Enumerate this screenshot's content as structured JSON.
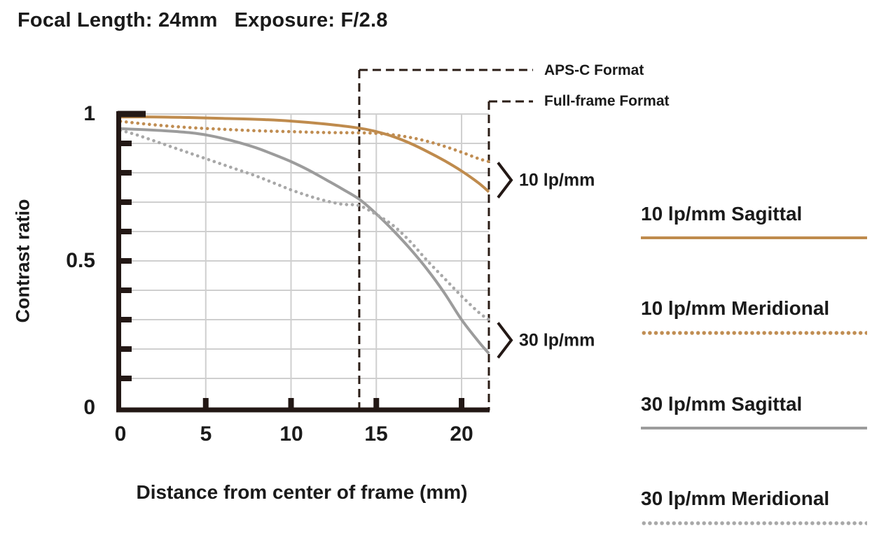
{
  "header": {
    "focal_length": "Focal Length: 24mm",
    "exposure": "Exposure: F/2.8"
  },
  "chart_data": {
    "type": "line",
    "xlabel": "Distance from center of frame (mm)",
    "ylabel": "Contrast ratio",
    "xlim": [
      0,
      21.6
    ],
    "ylim": [
      0,
      1
    ],
    "x_ticks": [
      0,
      5,
      10,
      15,
      20
    ],
    "x_tick_labels": [
      "0",
      "5",
      "10",
      "15",
      "20"
    ],
    "y_major_ticks": [
      1,
      0.5,
      0
    ],
    "y_tick_labels": [
      "1",
      "0.5",
      "0"
    ],
    "y_minor_step": 0.1,
    "grid": true,
    "boundaries": [
      {
        "label": "APS-C Format",
        "x": 14
      },
      {
        "label": "Full-frame Format",
        "x": 21.6
      }
    ],
    "group_markers": [
      {
        "label": "10 lp/mm",
        "y": 0.775
      },
      {
        "label": "30 lp/mm",
        "y": 0.23
      }
    ],
    "series": [
      {
        "name": "10 lp/mm Sagittal",
        "style": "solid",
        "color": "#bf8b4d",
        "points": [
          [
            0,
            0.99
          ],
          [
            2,
            0.99
          ],
          [
            4,
            0.988
          ],
          [
            6,
            0.985
          ],
          [
            8,
            0.982
          ],
          [
            10,
            0.976
          ],
          [
            12,
            0.966
          ],
          [
            14,
            0.952
          ],
          [
            15,
            0.94
          ],
          [
            16,
            0.923
          ],
          [
            17,
            0.9
          ],
          [
            18,
            0.872
          ],
          [
            19,
            0.841
          ],
          [
            20,
            0.806
          ],
          [
            21,
            0.765
          ],
          [
            21.6,
            0.735
          ]
        ]
      },
      {
        "name": "10 lp/mm Meridional",
        "style": "dotted",
        "color": "#c08d52",
        "points": [
          [
            0,
            0.975
          ],
          [
            2,
            0.963
          ],
          [
            4,
            0.954
          ],
          [
            6,
            0.948
          ],
          [
            8,
            0.943
          ],
          [
            10,
            0.94
          ],
          [
            12,
            0.937
          ],
          [
            14,
            0.936
          ],
          [
            15,
            0.934
          ],
          [
            16,
            0.929
          ],
          [
            17,
            0.92
          ],
          [
            18,
            0.907
          ],
          [
            19,
            0.89
          ],
          [
            20,
            0.87
          ],
          [
            21,
            0.848
          ],
          [
            21.6,
            0.838
          ]
        ]
      },
      {
        "name": "30 lp/mm Sagittal",
        "style": "solid",
        "color": "#9c9c9c",
        "points": [
          [
            0,
            0.95
          ],
          [
            2,
            0.945
          ],
          [
            4,
            0.937
          ],
          [
            5,
            0.929
          ],
          [
            6,
            0.917
          ],
          [
            7,
            0.902
          ],
          [
            8,
            0.884
          ],
          [
            9,
            0.862
          ],
          [
            10,
            0.838
          ],
          [
            11,
            0.81
          ],
          [
            12,
            0.778
          ],
          [
            13,
            0.745
          ],
          [
            14,
            0.71
          ],
          [
            15,
            0.66
          ],
          [
            16,
            0.603
          ],
          [
            17,
            0.54
          ],
          [
            18,
            0.47
          ],
          [
            19,
            0.39
          ],
          [
            20,
            0.3
          ],
          [
            21,
            0.225
          ],
          [
            21.6,
            0.185
          ]
        ]
      },
      {
        "name": "30 lp/mm Meridional",
        "style": "dotted",
        "color": "#a8a8a8",
        "points": [
          [
            0,
            0.945
          ],
          [
            1,
            0.928
          ],
          [
            2,
            0.908
          ],
          [
            3,
            0.888
          ],
          [
            4,
            0.868
          ],
          [
            5,
            0.848
          ],
          [
            6,
            0.828
          ],
          [
            7,
            0.808
          ],
          [
            8,
            0.788
          ],
          [
            9,
            0.765
          ],
          [
            10,
            0.742
          ],
          [
            11,
            0.722
          ],
          [
            12,
            0.705
          ],
          [
            13,
            0.693
          ],
          [
            14,
            0.688
          ],
          [
            15,
            0.658
          ],
          [
            16,
            0.62
          ],
          [
            17,
            0.565
          ],
          [
            18,
            0.5
          ],
          [
            19,
            0.44
          ],
          [
            20,
            0.38
          ],
          [
            21,
            0.325
          ],
          [
            21.6,
            0.3
          ]
        ]
      }
    ]
  },
  "legend": {
    "items": [
      {
        "label": "10 lp/mm Sagittal",
        "style": "solid",
        "color": "#bf8b4d"
      },
      {
        "label": "10 lp/mm Meridional",
        "style": "dotted",
        "color": "#c08d52"
      },
      {
        "label": "30 lp/mm Sagittal",
        "style": "solid",
        "color": "#9c9c9c"
      },
      {
        "label": "30 lp/mm Meridional",
        "style": "dotted",
        "color": "#a8a8a8"
      }
    ]
  },
  "colors": {
    "axis": "#231815",
    "grid": "#cfcfcf",
    "dash": "#2b1d16",
    "text": "#1a1a1a"
  }
}
